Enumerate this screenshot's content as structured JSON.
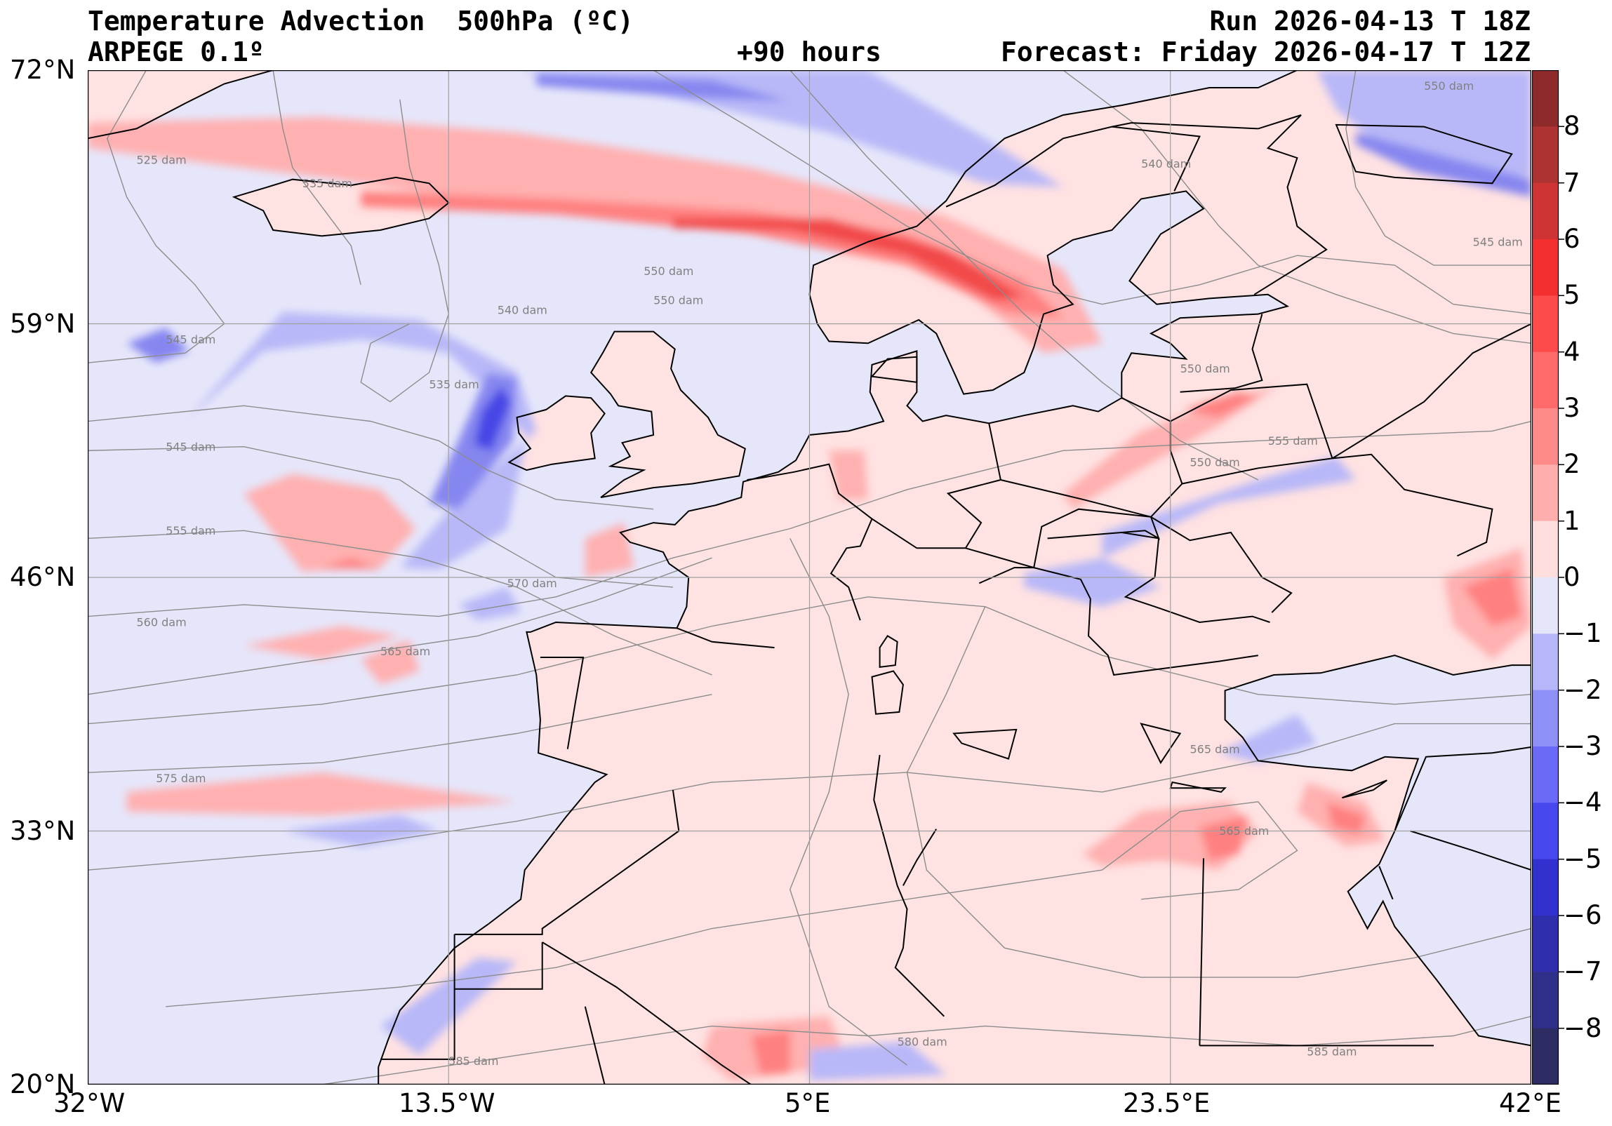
{
  "header": {
    "title": "Temperature Advection  500hPa (ºC)",
    "model": "ARPEGE 0.1º",
    "lead": "+90 hours",
    "run": "Run 2026-04-13 T 18Z",
    "forecast": "Forecast: Friday 2026-04-17 T 12Z"
  },
  "map": {
    "lon_range": [
      -32,
      42
    ],
    "lat_range": [
      20,
      72
    ],
    "lat_ticks": [
      "72°N",
      "59°N",
      "46°N",
      "33°N",
      "20°N"
    ],
    "lon_ticks": [
      "32°W",
      "13.5°W",
      "5°E",
      "23.5°E",
      "42°E"
    ],
    "grid": true,
    "colors": {
      "ocean_base": "#e6e6fa",
      "land_base": "#ffe2e2",
      "warm_1": "#ffb0b0",
      "warm_2": "#ff8080",
      "warm_3": "#f24848",
      "cold_1": "#b8b8f8",
      "cold_2": "#8686f0",
      "cold_3": "#4646e6",
      "coast": "#000000",
      "isohypse": "#8c8c8c"
    },
    "isohypse_labels": [
      {
        "text": "525 dam",
        "lon": -29.5,
        "lat": 67.2
      },
      {
        "text": "535 dam",
        "lon": -21.0,
        "lat": 66.0
      },
      {
        "text": "540 dam",
        "lon": -11.0,
        "lat": 59.5
      },
      {
        "text": "535 dam",
        "lon": -14.5,
        "lat": 55.7
      },
      {
        "text": "550 dam",
        "lon": -3.0,
        "lat": 60.0
      },
      {
        "text": "550 dam",
        "lon": -3.5,
        "lat": 61.5
      },
      {
        "text": "540 dam",
        "lon": 22.0,
        "lat": 67.0
      },
      {
        "text": "550 dam",
        "lon": 36.5,
        "lat": 71.0
      },
      {
        "text": "545 dam",
        "lon": 39.0,
        "lat": 63.0
      },
      {
        "text": "550 dam",
        "lon": 24.0,
        "lat": 56.5
      },
      {
        "text": "545 dam",
        "lon": -28.0,
        "lat": 58.0
      },
      {
        "text": "545 dam",
        "lon": -28.0,
        "lat": 52.5
      },
      {
        "text": "555 dam",
        "lon": 28.5,
        "lat": 52.8
      },
      {
        "text": "550 dam",
        "lon": 24.5,
        "lat": 51.7
      },
      {
        "text": "555 dam",
        "lon": -28.0,
        "lat": 48.2
      },
      {
        "text": "560 dam",
        "lon": -29.5,
        "lat": 43.5
      },
      {
        "text": "570 dam",
        "lon": -10.5,
        "lat": 45.5
      },
      {
        "text": "565 dam",
        "lon": -17.0,
        "lat": 42.0
      },
      {
        "text": "565 dam",
        "lon": 24.5,
        "lat": 37.0
      },
      {
        "text": "575 dam",
        "lon": -28.5,
        "lat": 35.5
      },
      {
        "text": "565 dam",
        "lon": 26.0,
        "lat": 32.8
      },
      {
        "text": "580 dam",
        "lon": 9.5,
        "lat": 22.0
      },
      {
        "text": "585 dam",
        "lon": -13.5,
        "lat": 21.0
      },
      {
        "text": "585 dam",
        "lon": 30.5,
        "lat": 21.5
      }
    ]
  },
  "colorbar": {
    "levels": [
      "8",
      "7",
      "6",
      "5",
      "4",
      "3",
      "2",
      "1",
      "0",
      "−1",
      "−2",
      "−3",
      "−4",
      "−5",
      "−6",
      "−7",
      "−8"
    ],
    "colors": [
      "#8e2a2a",
      "#ad3232",
      "#cf3434",
      "#f42f2f",
      "#fd4a4a",
      "#ff6a6a",
      "#ff8a8a",
      "#ffaeae",
      "#ffdede",
      "#e6e6fa",
      "#b6b6fb",
      "#8f8ff8",
      "#6a6af6",
      "#4747ee",
      "#3131cf",
      "#2f2fad",
      "#30308a",
      "#2d2d64"
    ]
  }
}
